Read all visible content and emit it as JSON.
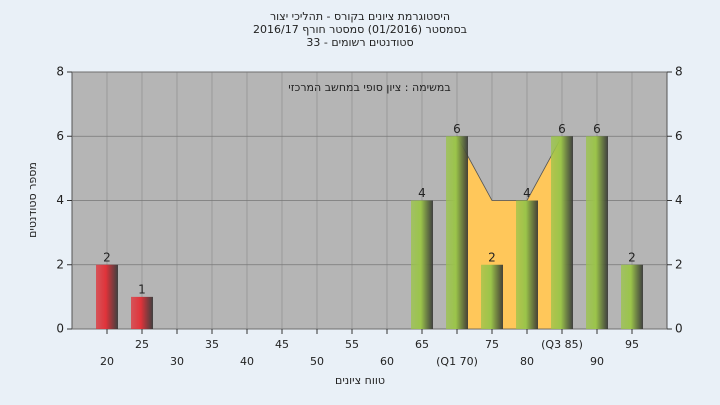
{
  "chart_data": {
    "type": "bar",
    "title": [
      "היסטוגרמת ציונים בקורס - תהליכי יצור",
      "בסמסטר  (01/2016)  סמסטר חורף 2016/17",
      "סטודנטים רשומים - 33"
    ],
    "annotation": "במשימה : ציון סופי במחשב המרכזי",
    "x_label": "טווח ציונים",
    "y_label": "מספר סטודנטים",
    "categories": [
      "20",
      "25",
      "30",
      "35",
      "40",
      "45",
      "50",
      "55",
      "60",
      "65",
      "(Q1 70)",
      "75",
      "80",
      "(Q3 85)",
      "90",
      "95"
    ],
    "values": [
      2,
      1,
      0,
      0,
      0,
      0,
      0,
      0,
      0,
      4,
      6,
      2,
      4,
      6,
      6,
      2
    ],
    "colors": [
      "#e0333a",
      "#e0333a",
      "#9bc44a",
      "#9bc44a",
      "#9bc44a",
      "#9bc44a",
      "#9bc44a",
      "#9bc44a",
      "#9bc44a",
      "#9bc44a",
      "#9bc44a",
      "#9bc44a",
      "#9bc44a",
      "#9bc44a",
      "#9bc44a",
      "#9bc44a"
    ],
    "area": {
      "color": "#ffc75a",
      "values": [
        null,
        null,
        null,
        null,
        null,
        null,
        null,
        null,
        null,
        null,
        6,
        4,
        4,
        6,
        null,
        null
      ]
    },
    "ylim": [
      0,
      8
    ],
    "yticks": [
      0,
      2,
      4,
      6,
      8
    ],
    "y2lim": [
      0,
      8
    ],
    "y2ticks": [
      0,
      2,
      4,
      6,
      8
    ],
    "grid": true
  }
}
